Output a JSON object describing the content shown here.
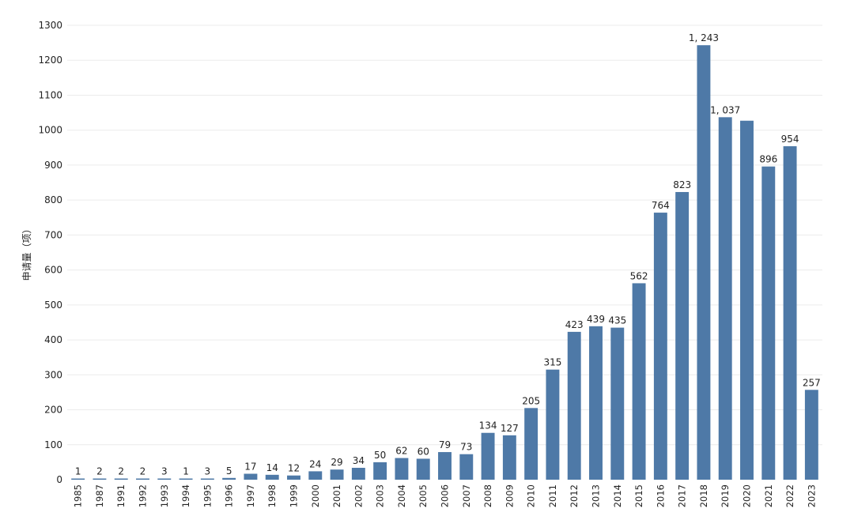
{
  "chart_data": {
    "type": "bar",
    "title": "",
    "xlabel": "",
    "ylabel": "申请量（项）",
    "ylim": [
      0,
      1300
    ],
    "yticks": [
      0,
      100,
      200,
      300,
      400,
      500,
      600,
      700,
      800,
      900,
      1000,
      1100,
      1200,
      1300
    ],
    "grid": true,
    "color": "#4e79a7",
    "categories": [
      "1985",
      "1987",
      "1991",
      "1992",
      "1993",
      "1994",
      "1995",
      "1996",
      "1997",
      "1998",
      "1999",
      "2000",
      "2001",
      "2002",
      "2003",
      "2004",
      "2005",
      "2006",
      "2007",
      "2008",
      "2009",
      "2010",
      "2011",
      "2012",
      "2013",
      "2014",
      "2015",
      "2016",
      "2017",
      "2018",
      "2019",
      "2020",
      "2021",
      "2022",
      "2023"
    ],
    "values": [
      1,
      2,
      2,
      2,
      3,
      1,
      3,
      5,
      17,
      14,
      12,
      24,
      29,
      34,
      50,
      62,
      60,
      79,
      73,
      134,
      127,
      205,
      315,
      423,
      439,
      435,
      562,
      764,
      823,
      1243,
      1037,
      1027,
      896,
      954,
      257
    ],
    "data_labels": [
      "1",
      "2",
      "2",
      "2",
      "3",
      "1",
      "3",
      "5",
      "17",
      "14",
      "12",
      "24",
      "29",
      "34",
      "50",
      "62",
      "60",
      "79",
      "73",
      "134",
      "127",
      "205",
      "315",
      "423",
      "439",
      "435",
      "562",
      "764",
      "823",
      "1, 243",
      "1, 037",
      "",
      "896",
      "954",
      "257"
    ]
  }
}
